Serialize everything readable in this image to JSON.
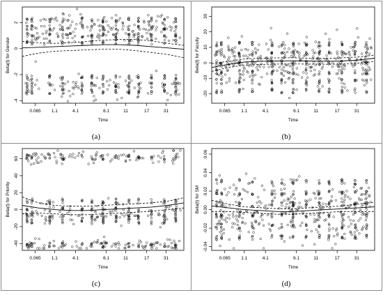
{
  "figure": {
    "panels": [
      {
        "label": "(a)",
        "chart_data": {
          "type": "scatter",
          "xlabel": "Time",
          "ylabel": "Beta(t) for Gender",
          "xticks": [
            "0.065",
            "1.1",
            "4.1",
            "6.1",
            "11",
            "17",
            "31"
          ],
          "yticks": [
            "-4",
            "-2",
            "0",
            "2"
          ],
          "ylim": [
            -4.2,
            3.2
          ],
          "lines": {
            "x": [
              0,
              0.1,
              0.2,
              0.3,
              0.4,
              0.5,
              0.6,
              0.7,
              0.8,
              0.9,
              1
            ],
            "fit": [
              0.05,
              0.1,
              0.15,
              0.2,
              0.25,
              0.3,
              0.3,
              0.25,
              0.15,
              0.05,
              -0.05
            ],
            "upper": [
              0.55,
              0.45,
              0.4,
              0.45,
              0.55,
              0.65,
              0.7,
              0.7,
              0.6,
              0.4,
              0.25
            ],
            "lower": [
              -0.6,
              -0.35,
              -0.2,
              -0.15,
              -0.1,
              -0.05,
              -0.05,
              -0.15,
              -0.3,
              -0.45,
              -0.7
            ]
          },
          "clusters": [
            {
              "center": 1.9,
              "spread": 0.45
            },
            {
              "center": 1.2,
              "spread": 0.35
            },
            {
              "center": -2.9,
              "spread": 0.5
            }
          ],
          "n_points": 260,
          "col_values": [
            2.2,
            1.6,
            1.0,
            0.5,
            -2.2,
            -2.8,
            -3.3
          ]
        }
      },
      {
        "label": "(b)",
        "chart_data": {
          "type": "scatter",
          "xlabel": "Time",
          "ylabel": "Beta(t) for Faculty",
          "xticks": [
            "0.065",
            "1.1",
            "4.1",
            "6.1",
            "11",
            "17",
            "31"
          ],
          "yticks": [
            "-20",
            "-10",
            "0",
            "10",
            "20",
            "30"
          ],
          "ylim": [
            -26,
            36
          ],
          "lines": {
            "x": [
              0,
              0.1,
              0.2,
              0.3,
              0.4,
              0.5,
              0.6,
              0.7,
              0.8,
              0.9,
              1
            ],
            "fit": [
              -3,
              -1,
              0.5,
              1,
              1.2,
              1.3,
              1.2,
              1,
              1.2,
              1.8,
              3
            ],
            "upper": [
              -0.5,
              1,
              2.5,
              3,
              3.2,
              3.3,
              3,
              2.9,
              3.2,
              3.8,
              5
            ],
            "lower": [
              -5.5,
              -3,
              -1.5,
              -1,
              -0.8,
              -0.7,
              -0.8,
              -0.9,
              -0.8,
              -0.2,
              1
            ]
          },
          "clusters": [
            {
              "center": 0,
              "spread": 8
            }
          ],
          "n_points": 300,
          "col_values": [
            12,
            6,
            0,
            -6,
            -12,
            -18
          ]
        }
      },
      {
        "label": "(c)",
        "chart_data": {
          "type": "scatter",
          "xlabel": "Time",
          "ylabel": "Beta(t) for Priority",
          "xticks": [
            "0.065",
            "1.1",
            "4.1",
            "6.1",
            "11",
            "17",
            "31"
          ],
          "yticks": [
            "-40",
            "-20",
            "0",
            "20",
            "40",
            "60"
          ],
          "ylim": [
            -48,
            72
          ],
          "lines": {
            "x": [
              0,
              0.1,
              0.2,
              0.3,
              0.4,
              0.5,
              0.6,
              0.7,
              0.8,
              0.9,
              1
            ],
            "fit": [
              5,
              2,
              0,
              -1,
              -1,
              0,
              1,
              2,
              3,
              5,
              8
            ],
            "upper": [
              15,
              8,
              5,
              4,
              4,
              5,
              6,
              7,
              8,
              10,
              14
            ],
            "lower": [
              -5,
              -4,
              -5,
              -6,
              -6,
              -5,
              -4,
              -3,
              -2,
              0,
              2
            ]
          },
          "clusters": [
            {
              "center": -4,
              "spread": 7
            },
            {
              "center": 62,
              "spread": 4
            },
            {
              "center": -42,
              "spread": 4
            }
          ],
          "n_points": 280,
          "col_values": [
            62,
            10,
            0,
            -8,
            -14,
            -42
          ]
        }
      },
      {
        "label": "(d)",
        "chart_data": {
          "type": "scatter",
          "xlabel": "Time",
          "ylabel": "Beta(t) for SM",
          "xticks": [
            "0.065",
            "1.1",
            "4.1",
            "6.1",
            "11",
            "17",
            "31"
          ],
          "yticks": [
            "-0.04",
            "-0.02",
            "0.00",
            "0.02",
            "0.04",
            "0.06"
          ],
          "ylim": [
            -0.044,
            0.066
          ],
          "lines": {
            "x": [
              0,
              0.1,
              0.2,
              0.3,
              0.4,
              0.5,
              0.6,
              0.7,
              0.8,
              0.9,
              1
            ],
            "fit": [
              0.004,
              0.002,
              0,
              -0.001,
              -0.002,
              -0.002,
              -0.001,
              0,
              0.001,
              0.002,
              0.003
            ],
            "upper": [
              0.01,
              0.006,
              0.003,
              0.002,
              0.001,
              0.001,
              0.002,
              0.003,
              0.004,
              0.006,
              0.008
            ],
            "lower": [
              -0.002,
              -0.002,
              -0.003,
              -0.004,
              -0.005,
              -0.005,
              -0.004,
              -0.003,
              -0.002,
              -0.002,
              -0.002
            ]
          },
          "clusters": [
            {
              "center": 0,
              "spread": 0.016
            }
          ],
          "n_points": 320,
          "col_values": [
            0.03,
            0.018,
            0.006,
            -0.006,
            -0.018,
            -0.03
          ]
        }
      }
    ]
  }
}
